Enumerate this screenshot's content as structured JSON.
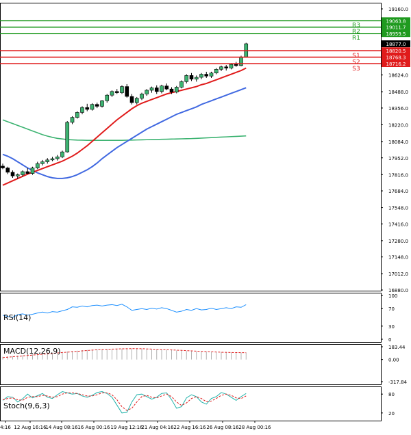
{
  "chart_data": {
    "type": "candlestick",
    "main_panel": {
      "y_ticks": [
        "19160.0",
        "18624.0",
        "18488.0",
        "18356.0",
        "18220.0",
        "18084.0",
        "17952.0",
        "17816.0",
        "17684.0",
        "17548.0",
        "17416.0",
        "17280.0",
        "17148.0",
        "17012.0",
        "16880.0"
      ],
      "ylim": [
        16880,
        19160
      ],
      "last_price": "18877.0",
      "levels": [
        {
          "name": "R3",
          "value": 19063.8,
          "label": "19063.8",
          "color": "#1f9a1f"
        },
        {
          "name": "R2",
          "value": 19011.7,
          "label": "19011.7",
          "color": "#1f9a1f"
        },
        {
          "name": "R1",
          "value": 18959.5,
          "label": "18959.5",
          "color": "#1f9a1f"
        },
        {
          "name": "S1",
          "value": 18820.5,
          "label": "18820.5",
          "color": "#e01b1b"
        },
        {
          "name": "S2",
          "value": 18768.3,
          "label": "18768.3",
          "color": "#e01b1b"
        },
        {
          "name": "S3",
          "value": 18716.2,
          "label": "18716.2",
          "color": "#e01b1b"
        }
      ],
      "candles": [
        [
          17885,
          17905,
          17860,
          17870
        ],
        [
          17870,
          17880,
          17820,
          17835
        ],
        [
          17835,
          17850,
          17790,
          17805
        ],
        [
          17805,
          17825,
          17780,
          17815
        ],
        [
          17815,
          17850,
          17800,
          17840
        ],
        [
          17840,
          17870,
          17820,
          17825
        ],
        [
          17825,
          17880,
          17815,
          17870
        ],
        [
          17870,
          17920,
          17860,
          17905
        ],
        [
          17905,
          17935,
          17890,
          17920
        ],
        [
          17920,
          17950,
          17905,
          17935
        ],
        [
          17935,
          17960,
          17925,
          17945
        ],
        [
          17945,
          17975,
          17930,
          17960
        ],
        [
          17960,
          18010,
          17950,
          18000
        ],
        [
          18000,
          18250,
          17995,
          18240
        ],
        [
          18240,
          18290,
          18225,
          18280
        ],
        [
          18280,
          18330,
          18270,
          18320
        ],
        [
          18320,
          18370,
          18305,
          18360
        ],
        [
          18360,
          18390,
          18330,
          18345
        ],
        [
          18345,
          18395,
          18335,
          18385
        ],
        [
          18385,
          18400,
          18355,
          18370
        ],
        [
          18370,
          18420,
          18360,
          18415
        ],
        [
          18415,
          18470,
          18400,
          18460
        ],
        [
          18460,
          18500,
          18445,
          18490
        ],
        [
          18490,
          18510,
          18470,
          18480
        ],
        [
          18480,
          18540,
          18470,
          18530
        ],
        [
          18530,
          18550,
          18440,
          18450
        ],
        [
          18450,
          18470,
          18385,
          18400
        ],
        [
          18400,
          18445,
          18385,
          18435
        ],
        [
          18435,
          18480,
          18420,
          18470
        ],
        [
          18470,
          18510,
          18455,
          18500
        ],
        [
          18500,
          18530,
          18480,
          18520
        ],
        [
          18520,
          18540,
          18470,
          18490
        ],
        [
          18490,
          18545,
          18475,
          18535
        ],
        [
          18535,
          18555,
          18500,
          18510
        ],
        [
          18510,
          18525,
          18470,
          18485
        ],
        [
          18485,
          18535,
          18475,
          18525
        ],
        [
          18525,
          18580,
          18515,
          18570
        ],
        [
          18570,
          18630,
          18555,
          18620
        ],
        [
          18620,
          18640,
          18575,
          18590
        ],
        [
          18590,
          18620,
          18570,
          18605
        ],
        [
          18605,
          18640,
          18590,
          18630
        ],
        [
          18630,
          18650,
          18600,
          18615
        ],
        [
          18615,
          18650,
          18600,
          18640
        ],
        [
          18640,
          18680,
          18630,
          18670
        ],
        [
          18670,
          18700,
          18655,
          18690
        ],
        [
          18690,
          18705,
          18660,
          18680
        ],
        [
          18680,
          18720,
          18670,
          18710
        ],
        [
          18710,
          18730,
          18690,
          18700
        ],
        [
          18700,
          18780,
          18695,
          18770
        ],
        [
          18770,
          18885,
          18765,
          18877
        ]
      ],
      "ma_red": [
        17730,
        17748,
        17766,
        17784,
        17802,
        17820,
        17835,
        17850,
        17865,
        17880,
        17895,
        17910,
        17925,
        17945,
        17965,
        17990,
        18020,
        18050,
        18085,
        18120,
        18155,
        18190,
        18225,
        18260,
        18290,
        18320,
        18350,
        18375,
        18395,
        18410,
        18425,
        18440,
        18455,
        18470,
        18480,
        18490,
        18500,
        18510,
        18520,
        18530,
        18545,
        18555,
        18570,
        18585,
        18600,
        18615,
        18630,
        18645,
        18660,
        18680
      ],
      "ma_blue": [
        17980,
        17965,
        17945,
        17920,
        17895,
        17870,
        17850,
        17830,
        17815,
        17800,
        17790,
        17785,
        17785,
        17790,
        17800,
        17815,
        17835,
        17855,
        17880,
        17910,
        17945,
        17975,
        18005,
        18035,
        18060,
        18085,
        18110,
        18135,
        18160,
        18185,
        18205,
        18225,
        18245,
        18265,
        18285,
        18305,
        18320,
        18335,
        18350,
        18365,
        18385,
        18400,
        18415,
        18430,
        18445,
        18460,
        18475,
        18490,
        18505,
        18520
      ],
      "ma_green": [
        18260,
        18245,
        18230,
        18215,
        18200,
        18185,
        18170,
        18155,
        18140,
        18128,
        18118,
        18110,
        18105,
        18100,
        18098,
        18096,
        18095,
        18094,
        18094,
        18094,
        18094,
        18094,
        18094,
        18094,
        18094,
        18095,
        18096,
        18097,
        18098,
        18099,
        18100,
        18101,
        18102,
        18103,
        18104,
        18105,
        18106,
        18107,
        18108,
        18110,
        18112,
        18114,
        18116,
        18118,
        18120,
        18122,
        18124,
        18126,
        18128,
        18130
      ]
    },
    "x_ticks": [
      "4:16",
      "12 Aug 16:16",
      "14 Aug 08:16",
      "16 Aug 00:16",
      "19 Aug 12:16",
      "21 Aug 04:16",
      "22 Aug 16:16",
      "26 Aug 08:16",
      "28 Aug 00:16"
    ],
    "rsi": {
      "label": "RSI(14)",
      "y_ticks": [
        "100",
        "70",
        "30",
        "0"
      ],
      "values": [
        55,
        52,
        50,
        56,
        58,
        55,
        57,
        60,
        62,
        60,
        63,
        62,
        65,
        68,
        74,
        73,
        76,
        74,
        77,
        78,
        76,
        78,
        79,
        77,
        80,
        74,
        66,
        68,
        70,
        68,
        71,
        69,
        72,
        70,
        66,
        62,
        64,
        68,
        66,
        70,
        67,
        68,
        71,
        68,
        70,
        72,
        70,
        74,
        73,
        79
      ]
    },
    "macd": {
      "label": "MACD(12,26,9)",
      "y_ticks": [
        "183.44",
        "0.00",
        "-317.84"
      ],
      "hist": [
        40,
        45,
        50,
        56,
        62,
        68,
        74,
        80,
        86,
        92,
        98,
        104,
        110,
        116,
        122,
        128,
        134,
        138,
        142,
        146,
        150,
        152,
        154,
        156,
        157,
        158,
        158,
        157,
        155,
        152,
        149,
        145,
        142,
        138,
        134,
        130,
        126,
        122,
        118,
        115,
        112,
        110,
        108,
        106,
        104,
        102,
        101,
        100,
        100,
        101
      ],
      "signal": [
        28,
        34,
        40,
        46,
        52,
        58,
        64,
        70,
        76,
        82,
        88,
        94,
        100,
        106,
        112,
        118,
        124,
        130,
        136,
        140,
        144,
        148,
        150,
        152,
        154,
        155,
        156,
        156,
        155,
        153,
        150,
        147,
        144,
        141,
        138,
        135,
        132,
        128,
        124,
        120,
        117,
        114,
        111,
        108,
        105,
        103,
        101,
        100,
        99,
        98
      ]
    },
    "stoch": {
      "label": "Stoch(9,6,3)",
      "y_ticks": [
        "80",
        "20"
      ],
      "main": [
        60,
        72,
        70,
        55,
        65,
        80,
        68,
        75,
        82,
        70,
        66,
        78,
        88,
        84,
        80,
        82,
        74,
        70,
        76,
        85,
        88,
        82,
        70,
        45,
        20,
        22,
        55,
        78,
        80,
        72,
        64,
        70,
        82,
        84,
        62,
        35,
        40,
        68,
        78,
        72,
        55,
        48,
        66,
        72,
        85,
        80,
        70,
        60,
        72,
        82
      ],
      "signal": [
        62,
        66,
        68,
        62,
        60,
        70,
        72,
        72,
        76,
        74,
        70,
        72,
        80,
        84,
        84,
        82,
        78,
        74,
        74,
        78,
        84,
        84,
        78,
        62,
        40,
        28,
        35,
        55,
        72,
        76,
        70,
        68,
        74,
        80,
        72,
        55,
        44,
        52,
        66,
        72,
        66,
        56,
        58,
        66,
        76,
        80,
        76,
        68,
        66,
        74
      ]
    }
  }
}
